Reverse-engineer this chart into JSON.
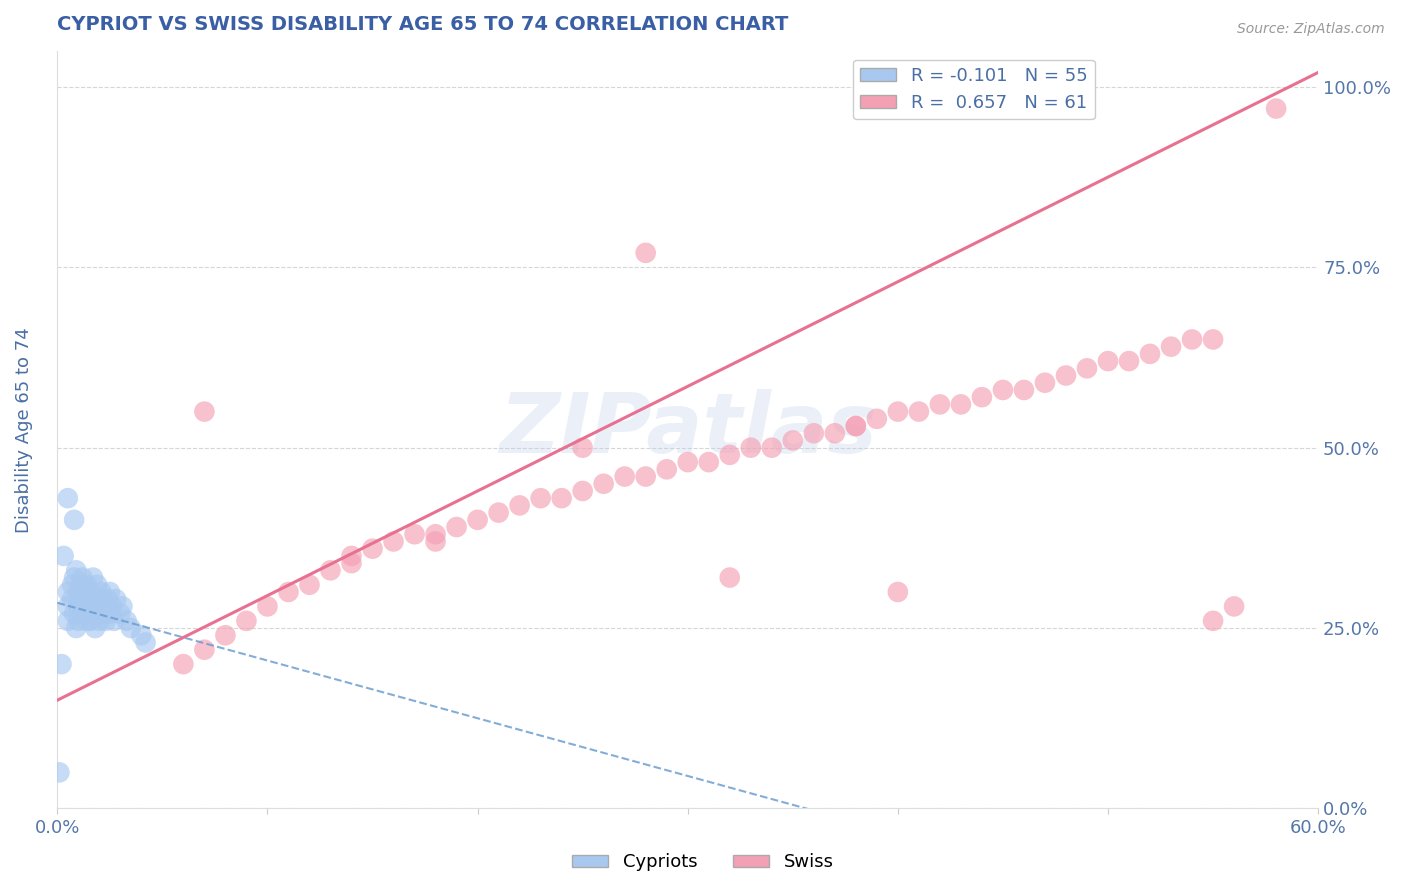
{
  "title": "CYPRIOT VS SWISS DISABILITY AGE 65 TO 74 CORRELATION CHART",
  "source_text": "Source: ZipAtlas.com",
  "ylabel_label": "Disability Age 65 to 74",
  "x_min": 0.0,
  "x_max": 0.6,
  "y_min": 0.0,
  "y_max": 1.05,
  "cypriot_color": "#a8c8f0",
  "swiss_color": "#f4a0b4",
  "cypriot_line_color": "#6699cc",
  "swiss_line_color": "#e87090",
  "title_color": "#3a5fa5",
  "label_color": "#4a6fa5",
  "axis_label_color": "#5577aa",
  "grid_color": "#cccccc",
  "background_color": "#ffffff",
  "watermark_text": "ZIPatlas",
  "cypriot_R": -0.101,
  "swiss_R": 0.657,
  "cypriot_N": 55,
  "swiss_N": 61,
  "cypriot_points_x": [
    0.005,
    0.005,
    0.005,
    0.007,
    0.007,
    0.008,
    0.008,
    0.009,
    0.009,
    0.01,
    0.01,
    0.01,
    0.011,
    0.011,
    0.012,
    0.012,
    0.013,
    0.013,
    0.014,
    0.014,
    0.015,
    0.015,
    0.015,
    0.016,
    0.016,
    0.017,
    0.017,
    0.018,
    0.018,
    0.019,
    0.019,
    0.02,
    0.02,
    0.021,
    0.021,
    0.022,
    0.022,
    0.023,
    0.024,
    0.025,
    0.025,
    0.026,
    0.027,
    0.028,
    0.03,
    0.031,
    0.033,
    0.035,
    0.04,
    0.042,
    0.005,
    0.008,
    0.003,
    0.002,
    0.001
  ],
  "cypriot_points_y": [
    0.28,
    0.26,
    0.3,
    0.29,
    0.31,
    0.27,
    0.32,
    0.25,
    0.33,
    0.28,
    0.3,
    0.26,
    0.29,
    0.31,
    0.27,
    0.32,
    0.28,
    0.3,
    0.26,
    0.31,
    0.28,
    0.29,
    0.27,
    0.3,
    0.26,
    0.28,
    0.32,
    0.25,
    0.29,
    0.27,
    0.31,
    0.28,
    0.26,
    0.29,
    0.3,
    0.27,
    0.28,
    0.26,
    0.29,
    0.27,
    0.3,
    0.28,
    0.26,
    0.29,
    0.27,
    0.28,
    0.26,
    0.25,
    0.24,
    0.23,
    0.43,
    0.4,
    0.35,
    0.2,
    0.05
  ],
  "swiss_points_x": [
    0.06,
    0.07,
    0.08,
    0.09,
    0.1,
    0.11,
    0.12,
    0.13,
    0.14,
    0.15,
    0.16,
    0.17,
    0.18,
    0.19,
    0.2,
    0.21,
    0.22,
    0.23,
    0.24,
    0.25,
    0.26,
    0.27,
    0.28,
    0.29,
    0.3,
    0.31,
    0.32,
    0.33,
    0.34,
    0.35,
    0.36,
    0.37,
    0.38,
    0.39,
    0.4,
    0.41,
    0.42,
    0.43,
    0.44,
    0.45,
    0.46,
    0.47,
    0.48,
    0.49,
    0.5,
    0.51,
    0.52,
    0.53,
    0.54,
    0.55,
    0.07,
    0.14,
    0.18,
    0.25,
    0.32,
    0.4,
    0.55,
    0.38,
    0.28,
    0.56,
    0.58
  ],
  "swiss_points_y": [
    0.2,
    0.22,
    0.24,
    0.26,
    0.28,
    0.3,
    0.31,
    0.33,
    0.35,
    0.36,
    0.37,
    0.38,
    0.38,
    0.39,
    0.4,
    0.41,
    0.42,
    0.43,
    0.43,
    0.44,
    0.45,
    0.46,
    0.46,
    0.47,
    0.48,
    0.48,
    0.49,
    0.5,
    0.5,
    0.51,
    0.52,
    0.52,
    0.53,
    0.54,
    0.55,
    0.55,
    0.56,
    0.56,
    0.57,
    0.58,
    0.58,
    0.59,
    0.6,
    0.61,
    0.62,
    0.62,
    0.63,
    0.64,
    0.65,
    0.65,
    0.55,
    0.34,
    0.37,
    0.5,
    0.32,
    0.3,
    0.26,
    0.53,
    0.77,
    0.28,
    0.97
  ]
}
